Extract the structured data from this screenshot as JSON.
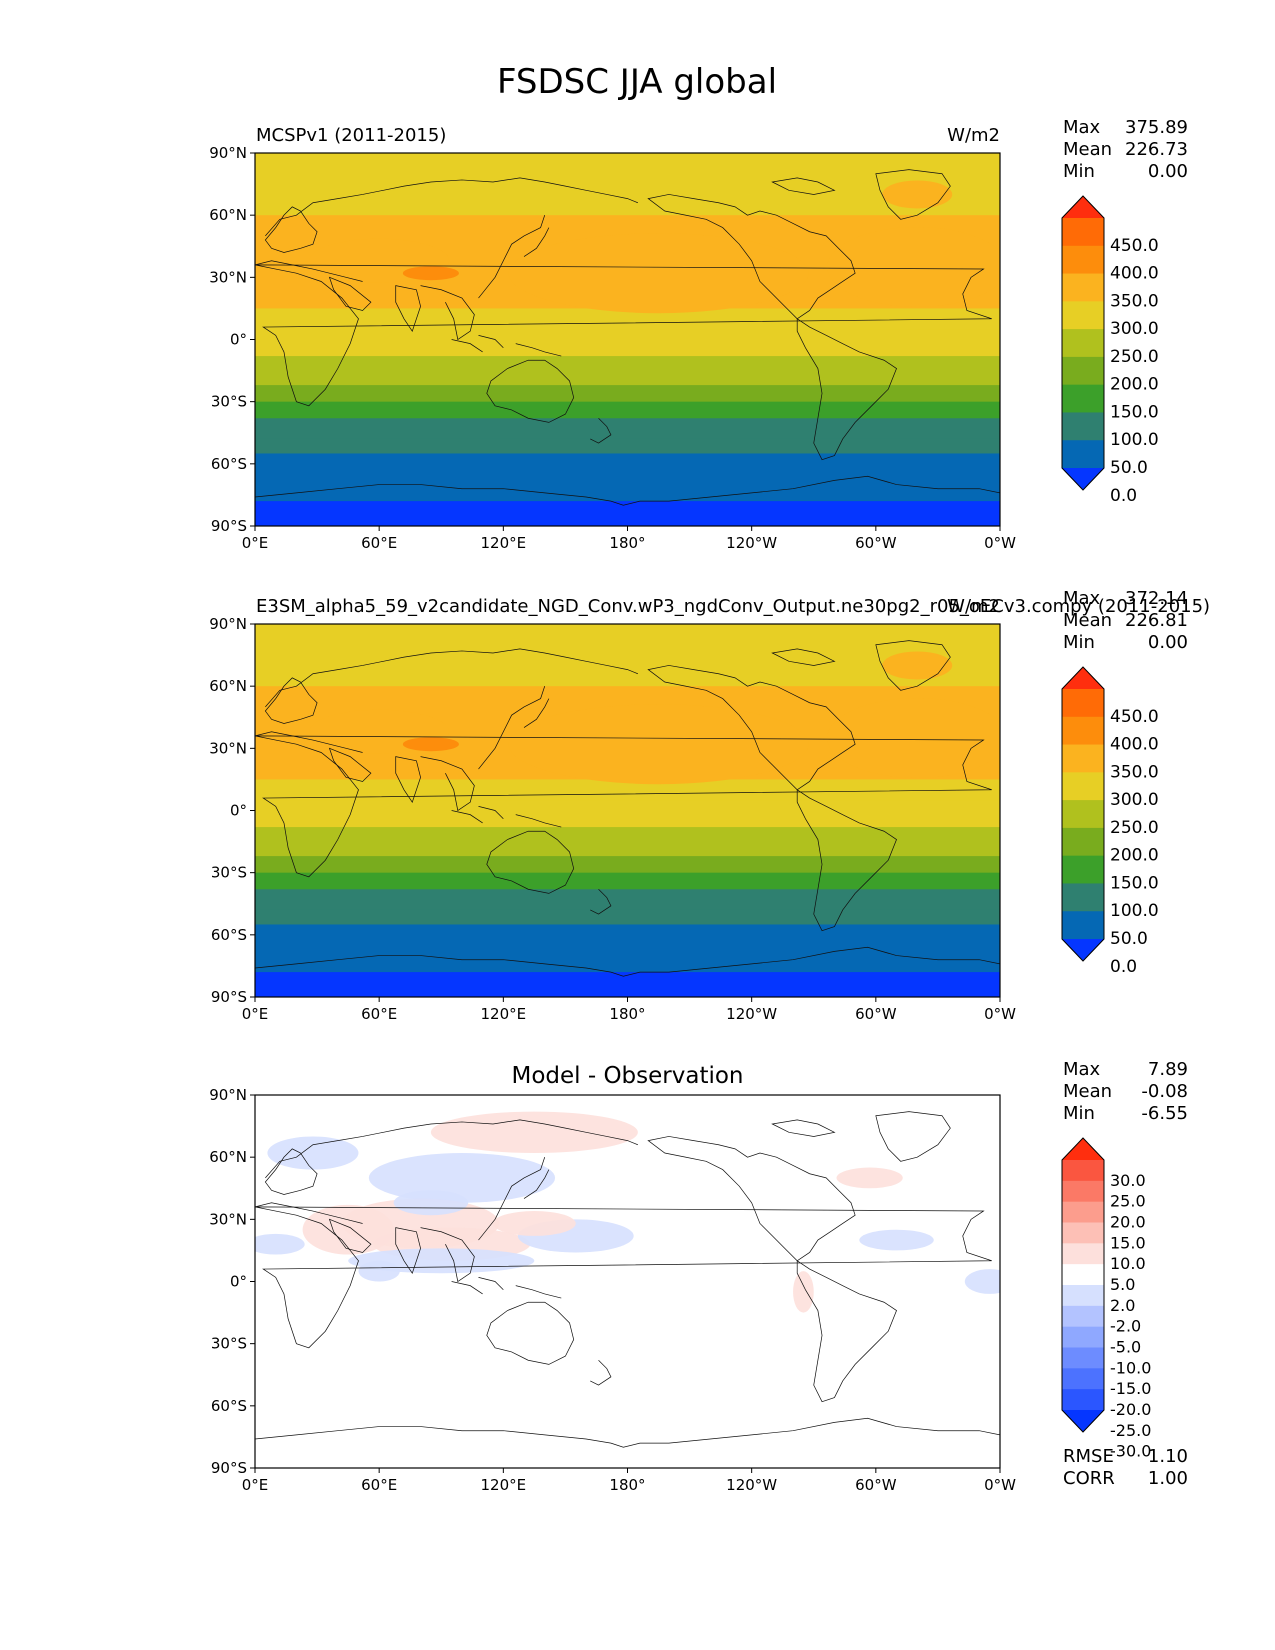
{
  "title": "FSDSC JJA global",
  "axes": {
    "lat_ticks": [
      "90°N",
      "60°N",
      "30°N",
      "0°",
      "30°S",
      "60°S",
      "90°S"
    ],
    "lon_ticks": [
      "0°E",
      "60°E",
      "120°E",
      "180°",
      "120°W",
      "60°W",
      "0°W"
    ]
  },
  "colors": {
    "mean_levels": [
      "#0536ff",
      "#0568b4",
      "#2f8070",
      "#3ca02a",
      "#79ac1e",
      "#b0c11e",
      "#e7cf25",
      "#fbb31f",
      "#fd8d0c",
      "#ff6b06",
      "#ff2e0e"
    ],
    "diff_levels": [
      "#0536ff",
      "#2b56ff",
      "#4c72ff",
      "#6d8cff",
      "#8fa8ff",
      "#b3c3ff",
      "#d6e0fe",
      "#ffffff",
      "#fde0dc",
      "#fdc0b6",
      "#fc9d8d",
      "#fb7966",
      "#fa5640",
      "#ff2e0e"
    ]
  },
  "panels": [
    {
      "id": "obs",
      "left_title": "MCSPv1 (2011-2015)",
      "right_title": "W/m2",
      "center_title": "",
      "stats": [
        {
          "label": "Max",
          "value": "375.89"
        },
        {
          "label": "Mean",
          "value": "226.73"
        },
        {
          "label": "Min",
          "value": "0.00"
        }
      ],
      "colorbar_labels": [
        "450.0",
        "400.0",
        "350.0",
        "300.0",
        "250.0",
        "200.0",
        "150.0",
        "100.0",
        "50.0",
        "0.0"
      ]
    },
    {
      "id": "model",
      "left_title": "E3SM_alpha5_59_v2candidate_NGD_Conv.wP3_ngdConv_Output.ne30pg2_r05_oECv3.compy (2011-2015)",
      "right_title": "W/m2",
      "center_title": "",
      "stats": [
        {
          "label": "Max",
          "value": "372.14"
        },
        {
          "label": "Mean",
          "value": "226.81"
        },
        {
          "label": "Min",
          "value": "0.00"
        }
      ],
      "colorbar_labels": [
        "450.0",
        "400.0",
        "350.0",
        "300.0",
        "250.0",
        "200.0",
        "150.0",
        "100.0",
        "50.0",
        "0.0"
      ]
    },
    {
      "id": "diff",
      "left_title": "",
      "right_title": "",
      "center_title": "Model - Observation",
      "stats": [
        {
          "label": "Max",
          "value": "7.89"
        },
        {
          "label": "Mean",
          "value": "-0.08"
        },
        {
          "label": "Min",
          "value": "-6.55"
        }
      ],
      "colorbar_labels": [
        "30.0",
        "25.0",
        "20.0",
        "15.0",
        "10.0",
        "5.0",
        "2.0",
        "-2.0",
        "-5.0",
        "-10.0",
        "-15.0",
        "-20.0",
        "-25.0",
        "-30.0"
      ],
      "extra_stats": [
        {
          "label": "RMSE",
          "value": "1.10"
        },
        {
          "label": "CORR",
          "value": "1.00"
        }
      ]
    }
  ]
}
